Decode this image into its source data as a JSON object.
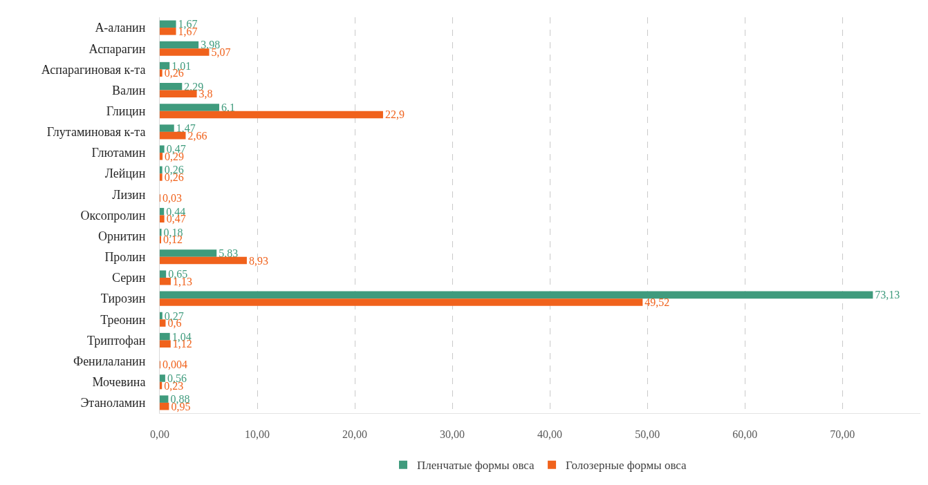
{
  "chart_data": {
    "type": "bar",
    "orientation": "horizontal",
    "categories": [
      "А-аланин",
      "Аспарагин",
      "Аспарагиновая к-та",
      "Валин",
      "Глицин",
      "Глутаминовая к-та",
      "Глютамин",
      "Лейцин",
      "Лизин",
      "Оксопролин",
      "Орнитин",
      "Пролин",
      "Серин",
      "Тирозин",
      "Треонин",
      "Триптофан",
      "Фенилаланин",
      "Мочевина",
      "Этаноламин"
    ],
    "series": [
      {
        "name": "Пленчатые формы овса",
        "color": "#3f9b7d",
        "values": [
          1.67,
          3.98,
          1.01,
          2.29,
          6.1,
          1.47,
          0.47,
          0.26,
          null,
          0.44,
          0.18,
          5.83,
          0.65,
          73.13,
          0.27,
          1.04,
          null,
          0.56,
          0.88
        ],
        "value_labels": [
          "1,67",
          "3,98",
          "1,01",
          "2,29",
          "6,1",
          "1,47",
          "0,47",
          "0,26",
          null,
          "0,44",
          "0,18",
          "5,83",
          "0,65",
          "73,13",
          "0,27",
          "1,04",
          null,
          "0,56",
          "0,88"
        ]
      },
      {
        "name": "Голозерные формы овса",
        "color": "#f0621c",
        "values": [
          1.67,
          5.07,
          0.26,
          3.8,
          22.9,
          2.66,
          0.29,
          0.26,
          0.03,
          0.47,
          0.12,
          8.93,
          1.13,
          49.52,
          0.6,
          1.12,
          0.004,
          0.23,
          0.95
        ],
        "value_labels": [
          "1,67",
          "5,07",
          "0,26",
          "3,8",
          "22,9",
          "2,66",
          "0,29",
          "0,26",
          "0,03",
          "0,47",
          "0,12",
          "8,93",
          "1,13",
          "49,52",
          "0,6",
          "1,12",
          "0,004",
          "0,23",
          "0,95"
        ]
      }
    ],
    "xlim": [
      0,
      78
    ],
    "xticks": [
      {
        "value": 0,
        "label": "0,00"
      },
      {
        "value": 10,
        "label": "10,00"
      },
      {
        "value": 20,
        "label": "20,00"
      },
      {
        "value": 30,
        "label": "30,00"
      },
      {
        "value": 40,
        "label": "40,00"
      },
      {
        "value": 50,
        "label": "50,00"
      },
      {
        "value": 60,
        "label": "60,00"
      },
      {
        "value": 70,
        "label": "70,00"
      }
    ],
    "grid": "x",
    "legend": "bottom"
  }
}
